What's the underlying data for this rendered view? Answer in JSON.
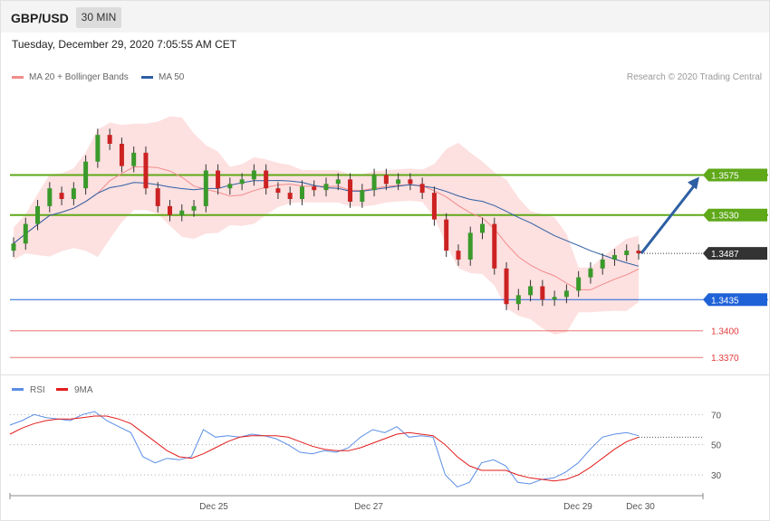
{
  "header": {
    "symbol": "GBP/USD",
    "timeframe": "30 MIN"
  },
  "datetime": "Tuesday, December 29, 2020 7:05:55 AM CET",
  "legend": [
    {
      "label": "MA 20 + Bollinger Bands",
      "color": "#f28b8b"
    },
    {
      "label": "MA 50",
      "color": "#2f5fa3"
    }
  ],
  "copyright": "Research © 2020 Trading Central",
  "chart_data": [
    {
      "type": "candlestick",
      "title": "",
      "ylim": [
        1.3355,
        1.3675
      ],
      "current_price": {
        "value": 1.3487,
        "label": "1.3487",
        "color": "#333333"
      },
      "levels": [
        {
          "value": 1.3575,
          "label": "1.3575",
          "color": "#5ea819",
          "style": "resistance"
        },
        {
          "value": 1.353,
          "label": "1.3530",
          "color": "#5ea819",
          "style": "resistance"
        },
        {
          "value": 1.3435,
          "label": "1.3435",
          "color": "#1f62d8",
          "style": "pivot"
        },
        {
          "value": 1.34,
          "label": "1.3400",
          "color": "#e23b3b",
          "style": "support"
        },
        {
          "value": 1.337,
          "label": "1.3370",
          "color": "#e23b3b",
          "style": "support"
        }
      ],
      "forecast_arrow": {
        "from": 1.3487,
        "to": 1.3575,
        "color": "#2d5fa3"
      },
      "candles_approx": [
        [
          1.349,
          1.3498
        ],
        [
          1.3498,
          1.352
        ],
        [
          1.352,
          1.354
        ],
        [
          1.354,
          1.356
        ],
        [
          1.3555,
          1.3548
        ],
        [
          1.3548,
          1.356
        ],
        [
          1.356,
          1.359
        ],
        [
          1.359,
          1.362
        ],
        [
          1.362,
          1.361
        ],
        [
          1.361,
          1.3585
        ],
        [
          1.3585,
          1.36
        ],
        [
          1.36,
          1.356
        ],
        [
          1.356,
          1.354
        ],
        [
          1.354,
          1.353
        ],
        [
          1.353,
          1.3535
        ],
        [
          1.3535,
          1.354
        ],
        [
          1.354,
          1.358
        ],
        [
          1.358,
          1.356
        ],
        [
          1.356,
          1.3565
        ],
        [
          1.3565,
          1.357
        ],
        [
          1.357,
          1.358
        ],
        [
          1.358,
          1.356
        ],
        [
          1.356,
          1.3555
        ],
        [
          1.3555,
          1.3548
        ],
        [
          1.3548,
          1.3562
        ],
        [
          1.3562,
          1.3558
        ],
        [
          1.3558,
          1.3565
        ],
        [
          1.3565,
          1.357
        ],
        [
          1.357,
          1.3545
        ],
        [
          1.3545,
          1.3558
        ],
        [
          1.3558,
          1.3575
        ],
        [
          1.3575,
          1.3565
        ],
        [
          1.3565,
          1.357
        ],
        [
          1.357,
          1.3565
        ],
        [
          1.3565,
          1.3555
        ],
        [
          1.3555,
          1.3525
        ],
        [
          1.3525,
          1.349
        ],
        [
          1.349,
          1.348
        ],
        [
          1.348,
          1.351
        ],
        [
          1.351,
          1.352
        ],
        [
          1.352,
          1.347
        ],
        [
          1.347,
          1.343
        ],
        [
          1.343,
          1.344
        ],
        [
          1.344,
          1.345
        ],
        [
          1.345,
          1.3435
        ],
        [
          1.3435,
          1.3438
        ],
        [
          1.3438,
          1.3445
        ],
        [
          1.3445,
          1.346
        ],
        [
          1.346,
          1.347
        ],
        [
          1.347,
          1.348
        ],
        [
          1.348,
          1.3485
        ],
        [
          1.3485,
          1.349
        ],
        [
          1.349,
          1.3487
        ]
      ]
    },
    {
      "type": "line",
      "title": "",
      "series": [
        {
          "name": "RSI",
          "color": "#5b8ee6",
          "values": [
            63,
            66,
            70,
            68,
            67,
            66,
            70,
            72,
            66,
            62,
            58,
            42,
            38,
            41,
            40,
            42,
            60,
            55,
            56,
            55,
            57,
            56,
            54,
            50,
            45,
            44,
            46,
            45,
            48,
            55,
            60,
            58,
            62,
            55,
            56,
            55,
            30,
            22,
            25,
            38,
            40,
            36,
            25,
            24,
            27,
            28,
            32,
            38,
            47,
            55,
            57,
            58,
            56
          ]
        },
        {
          "name": "9MA",
          "color": "#e31b1b",
          "values": [
            57,
            61,
            64,
            66,
            67,
            67,
            68,
            69,
            69,
            67,
            64,
            58,
            52,
            46,
            42,
            41,
            44,
            48,
            52,
            55,
            56,
            56,
            56,
            55,
            52,
            49,
            47,
            46,
            46,
            48,
            51,
            54,
            57,
            58,
            57,
            56,
            50,
            42,
            36,
            33,
            33,
            33,
            30,
            28,
            27,
            26,
            27,
            30,
            35,
            41,
            47,
            52,
            55
          ]
        }
      ],
      "ylim": [
        18,
        78
      ],
      "yticks": [
        70,
        50,
        30
      ],
      "xticks": [
        "Dec 25",
        "Dec 27",
        "Dec 29",
        "Dec 30"
      ]
    }
  ]
}
